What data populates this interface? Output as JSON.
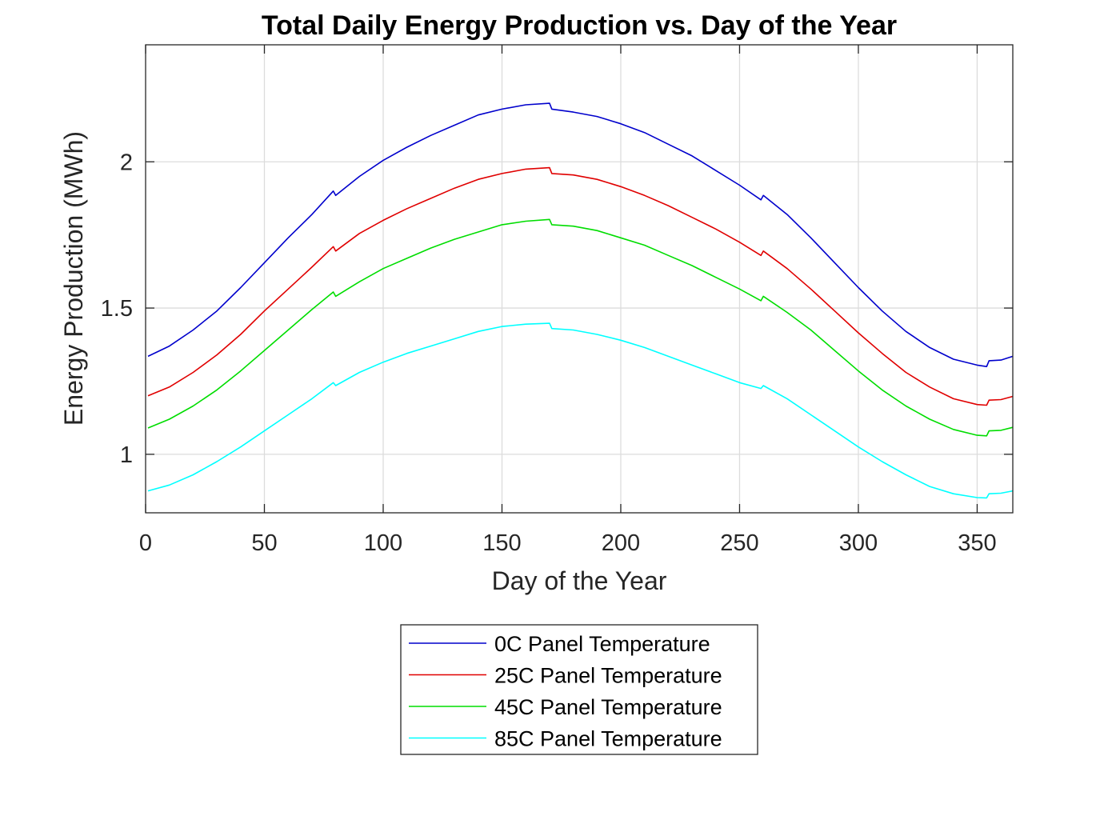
{
  "chart_data": {
    "type": "line",
    "title": "Total Daily Energy Production vs. Day of the Year",
    "xlabel": "Day of the Year",
    "ylabel": "Energy Production (MWh)",
    "xlim": [
      0,
      365
    ],
    "ylim": [
      0.8,
      2.4
    ],
    "xticks": [
      0,
      50,
      100,
      150,
      200,
      250,
      300,
      350
    ],
    "xtick_labels": [
      "0",
      "50",
      "100",
      "150",
      "200",
      "250",
      "300",
      "350"
    ],
    "yticks": [
      1,
      1.5,
      2
    ],
    "ytick_labels": [
      "1",
      "1.5",
      "2"
    ],
    "grid": true,
    "legend_position": "below",
    "x": [
      1,
      10,
      20,
      30,
      40,
      50,
      60,
      70,
      79,
      80,
      90,
      100,
      110,
      120,
      130,
      140,
      150,
      160,
      170,
      171,
      180,
      190,
      200,
      210,
      220,
      230,
      240,
      250,
      259,
      260,
      270,
      280,
      290,
      300,
      310,
      320,
      330,
      340,
      350,
      354,
      355,
      360,
      365
    ],
    "series": [
      {
        "name": "0C Panel Temperature",
        "color": "#0000cc",
        "values": [
          1.335,
          1.37,
          1.425,
          1.49,
          1.57,
          1.655,
          1.74,
          1.82,
          1.9,
          1.885,
          1.95,
          2.005,
          2.05,
          2.09,
          2.125,
          2.16,
          2.18,
          2.195,
          2.2,
          2.18,
          2.17,
          2.155,
          2.13,
          2.1,
          2.06,
          2.02,
          1.97,
          1.92,
          1.87,
          1.885,
          1.82,
          1.74,
          1.655,
          1.57,
          1.49,
          1.42,
          1.365,
          1.325,
          1.305,
          1.3,
          1.32,
          1.322,
          1.335
        ]
      },
      {
        "name": "25C Panel Temperature",
        "color": "#e00000",
        "values": [
          1.2,
          1.23,
          1.28,
          1.34,
          1.41,
          1.49,
          1.565,
          1.64,
          1.71,
          1.695,
          1.755,
          1.8,
          1.84,
          1.875,
          1.91,
          1.94,
          1.96,
          1.975,
          1.98,
          1.96,
          1.955,
          1.94,
          1.915,
          1.885,
          1.85,
          1.81,
          1.77,
          1.725,
          1.68,
          1.695,
          1.635,
          1.565,
          1.49,
          1.415,
          1.345,
          1.28,
          1.23,
          1.19,
          1.17,
          1.168,
          1.185,
          1.187,
          1.198
        ]
      },
      {
        "name": "45C Panel Temperature",
        "color": "#00dd00",
        "values": [
          1.09,
          1.12,
          1.165,
          1.22,
          1.285,
          1.355,
          1.425,
          1.495,
          1.555,
          1.54,
          1.59,
          1.635,
          1.67,
          1.705,
          1.735,
          1.76,
          1.785,
          1.797,
          1.803,
          1.785,
          1.78,
          1.765,
          1.74,
          1.715,
          1.68,
          1.645,
          1.605,
          1.565,
          1.525,
          1.54,
          1.485,
          1.425,
          1.355,
          1.285,
          1.22,
          1.165,
          1.12,
          1.085,
          1.065,
          1.063,
          1.08,
          1.082,
          1.092
        ]
      },
      {
        "name": "85C Panel Temperature",
        "color": "#00ffff",
        "values": [
          0.875,
          0.895,
          0.93,
          0.975,
          1.025,
          1.08,
          1.135,
          1.19,
          1.245,
          1.235,
          1.28,
          1.315,
          1.345,
          1.37,
          1.395,
          1.42,
          1.437,
          1.445,
          1.448,
          1.43,
          1.425,
          1.41,
          1.39,
          1.365,
          1.335,
          1.305,
          1.275,
          1.245,
          1.225,
          1.235,
          1.19,
          1.135,
          1.08,
          1.025,
          0.975,
          0.93,
          0.89,
          0.865,
          0.852,
          0.851,
          0.865,
          0.867,
          0.875
        ]
      }
    ]
  }
}
